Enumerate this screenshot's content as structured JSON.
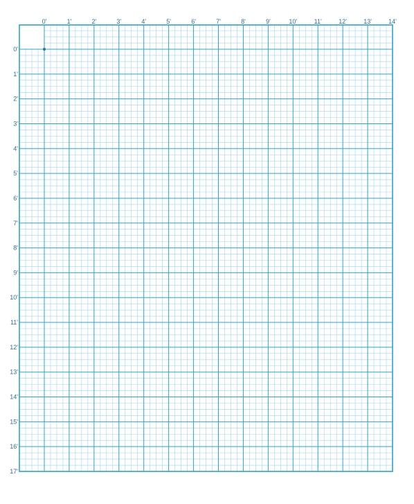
{
  "sheet": {
    "grid_color": "#29a3d8",
    "minor_grid_color": "#9fd3ee",
    "label_color": "#2f6f9e",
    "subdivisions_per_foot": 4,
    "origin_marker": true
  },
  "column_labels": [
    "0'",
    "1'",
    "2'",
    "3'",
    "4'",
    "5'",
    "6'",
    "7'",
    "8'",
    "9'",
    "10'",
    "11'",
    "12'",
    "13'",
    "14'"
  ],
  "row_labels": [
    "0'",
    "1'",
    "2'",
    "3'",
    "4'",
    "5'",
    "6'",
    "7'",
    "8'",
    "9'",
    "10'",
    "11'",
    "12'",
    "13'",
    "14'",
    "15'",
    "16'",
    "17'"
  ]
}
